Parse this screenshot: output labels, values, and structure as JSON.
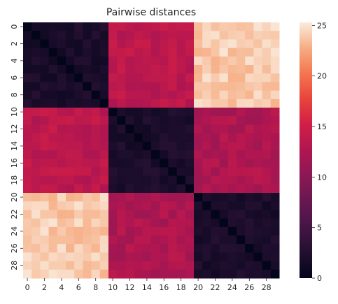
{
  "chart_data": {
    "type": "heatmap",
    "title": "Pairwise distances",
    "xlabel": "",
    "ylabel": "",
    "n": 30,
    "x_tick_labels": [
      "0",
      "2",
      "4",
      "6",
      "8",
      "10",
      "12",
      "14",
      "16",
      "18",
      "20",
      "22",
      "24",
      "26",
      "28"
    ],
    "y_tick_labels": [
      "0",
      "2",
      "4",
      "6",
      "8",
      "10",
      "12",
      "14",
      "16",
      "18",
      "20",
      "22",
      "24",
      "26",
      "28"
    ],
    "colorbar": {
      "min": 0,
      "max": 25.3,
      "ticks": [
        0,
        5,
        10,
        15,
        20,
        25
      ],
      "tick_labels": [
        "0",
        "5",
        "10",
        "15",
        "20",
        "25"
      ],
      "colormap": "rocket"
    },
    "groups": [
      {
        "name": "",
        "start": 0,
        "end": 9
      },
      {
        "name": "",
        "start": 10,
        "end": 19
      },
      {
        "name": "",
        "start": 20,
        "end": 29
      }
    ],
    "block_mean_distance": [
      [
        2.0,
        13.5,
        24.0
      ],
      [
        13.5,
        2.0,
        12.5
      ],
      [
        24.0,
        12.5,
        2.0
      ]
    ],
    "diagonal_value": 0
  }
}
